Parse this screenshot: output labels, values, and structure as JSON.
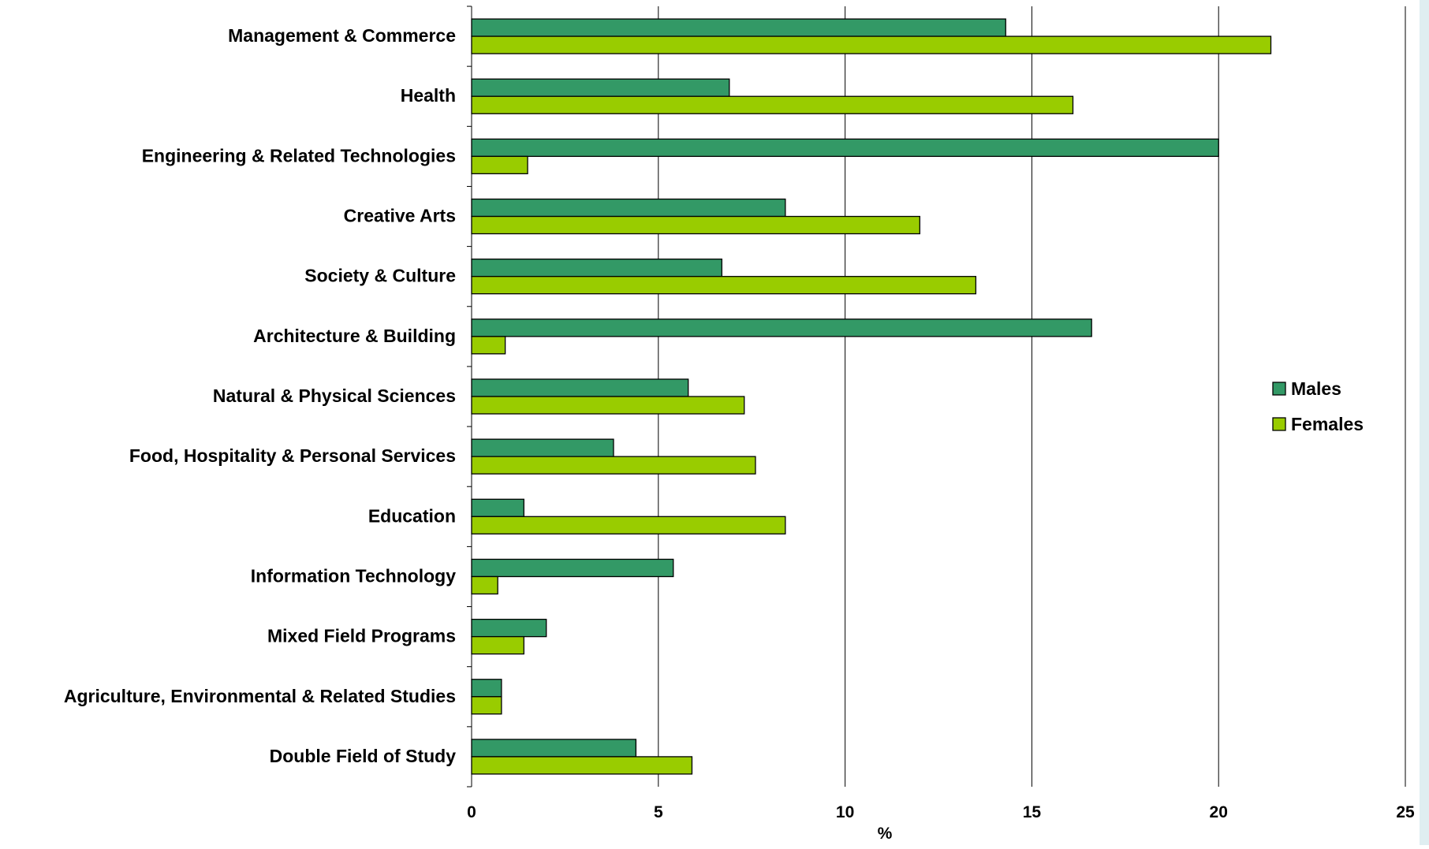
{
  "chart_data": {
    "type": "bar",
    "orientation": "horizontal",
    "xlabel": "%",
    "ylabel": "",
    "xlim": [
      0,
      25
    ],
    "xticks": [
      0,
      5,
      10,
      15,
      20,
      25
    ],
    "grid": "vertical major gridlines",
    "legend_position": "right",
    "categories": [
      "Management & Commerce",
      "Health",
      "Engineering & Related Technologies",
      "Creative Arts",
      "Society & Culture",
      "Architecture & Building",
      "Natural & Physical Sciences",
      "Food, Hospitality & Personal Services",
      "Education",
      "Information Technology",
      "Mixed Field Programs",
      "Agriculture, Environmental & Related Studies",
      "Double Field of Study"
    ],
    "series": [
      {
        "name": "Males",
        "color": "#339966",
        "values": [
          14.3,
          6.9,
          20.0,
          8.4,
          6.7,
          16.6,
          5.8,
          3.8,
          1.4,
          5.4,
          2.0,
          0.8,
          4.4
        ]
      },
      {
        "name": "Females",
        "color": "#99cc00",
        "values": [
          21.4,
          16.1,
          1.5,
          12.0,
          13.5,
          0.9,
          7.3,
          7.6,
          8.4,
          0.7,
          1.4,
          0.8,
          5.9
        ]
      }
    ]
  }
}
